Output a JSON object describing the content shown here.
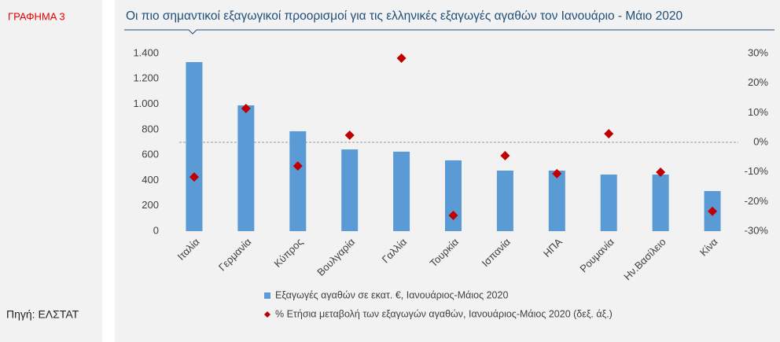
{
  "label": "ΓΡΑΦΗΜΑ 3",
  "source": "Πηγή: ΕΛΣΤΑΤ",
  "chart_data": {
    "type": "bar",
    "title": "Οι πιο σημαντικοί εξαγωγικοί προορισμοί για τις ελληνικές εξαγωγές αγαθών τον Ιανουάριο - Μάιο 2020",
    "categories": [
      "Ιταλία",
      "Γερμανία",
      "Κύπρος",
      "Βουλγαρία",
      "Γαλλία",
      "Τουρκία",
      "Ισπανία",
      "ΗΠΑ",
      "Ρουμανία",
      "Ην.Βασίλειο",
      "Κίνα"
    ],
    "series": [
      {
        "name": "Εξαγωγές αγαθών σε εκατ. €, Ιανουάριος-Μάιος 2020",
        "color": "#5b9bd5",
        "type": "bar",
        "values": [
          1332,
          991,
          787,
          644,
          626,
          558,
          477,
          477,
          446,
          446,
          316
        ]
      },
      {
        "name": "% Ετήσια μεταβολή των εξαγωγών αγαθών, Ιανουάριος-Μάιος 2020 (δεξ. άξ.)",
        "color": "#c00000",
        "type": "scatter",
        "axis": "y2",
        "values": [
          -11.7,
          11.4,
          -8.0,
          2.4,
          28.4,
          -24.7,
          -4.5,
          -10.6,
          2.9,
          -10.1,
          -23.3
        ]
      }
    ],
    "ylim": [
      0,
      1400
    ],
    "yticks": [
      0,
      200,
      400,
      600,
      800,
      {
        "value": 1000,
        "label": "1.000"
      },
      {
        "value": 1200,
        "label": "1.200"
      },
      {
        "value": 1400,
        "label": "1.400"
      }
    ],
    "y2lim": [
      -30,
      30
    ],
    "y2ticks": [
      {
        "value": -30,
        "label": "-30%"
      },
      {
        "value": -20,
        "label": "-20%"
      },
      {
        "value": -10,
        "label": "-10%"
      },
      {
        "value": 0,
        "label": "0%"
      },
      {
        "value": 10,
        "label": "10%"
      },
      {
        "value": 20,
        "label": "20%"
      },
      {
        "value": 30,
        "label": "30%"
      }
    ],
    "zero_line_y2": true
  }
}
